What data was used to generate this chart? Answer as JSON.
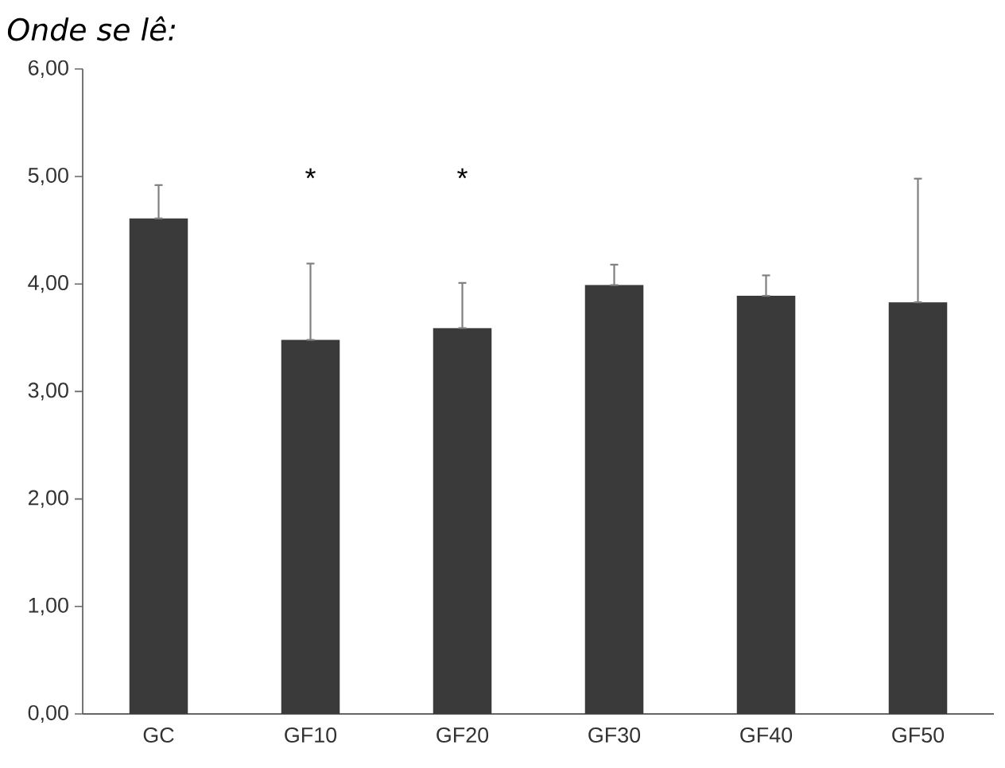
{
  "chart_data": {
    "type": "bar",
    "title": "Onde se lê:",
    "categories": [
      "GC",
      "GF10",
      "GF20",
      "GF30",
      "GF40",
      "GF50"
    ],
    "values": [
      4.61,
      3.48,
      3.59,
      3.99,
      3.89,
      3.83
    ],
    "errors": [
      [
        4.61,
        4.92
      ],
      [
        3.48,
        4.19
      ],
      [
        3.59,
        4.01
      ],
      [
        3.99,
        4.18
      ],
      [
        3.89,
        4.08
      ],
      [
        3.83,
        4.98
      ]
    ],
    "color": "#3a3a3a",
    "ylim": [
      0,
      6
    ],
    "yticks": [
      {
        "value": 0,
        "label": "0,00"
      },
      {
        "value": 1,
        "label": "1,00"
      },
      {
        "value": 2,
        "label": "2,00"
      },
      {
        "value": 3,
        "label": "3,00"
      },
      {
        "value": 4,
        "label": "4,00"
      },
      {
        "value": 5,
        "label": "5,00"
      },
      {
        "value": 6,
        "label": "6,00"
      }
    ],
    "annotations": [
      "*",
      "*"
    ],
    "grid": false
  }
}
